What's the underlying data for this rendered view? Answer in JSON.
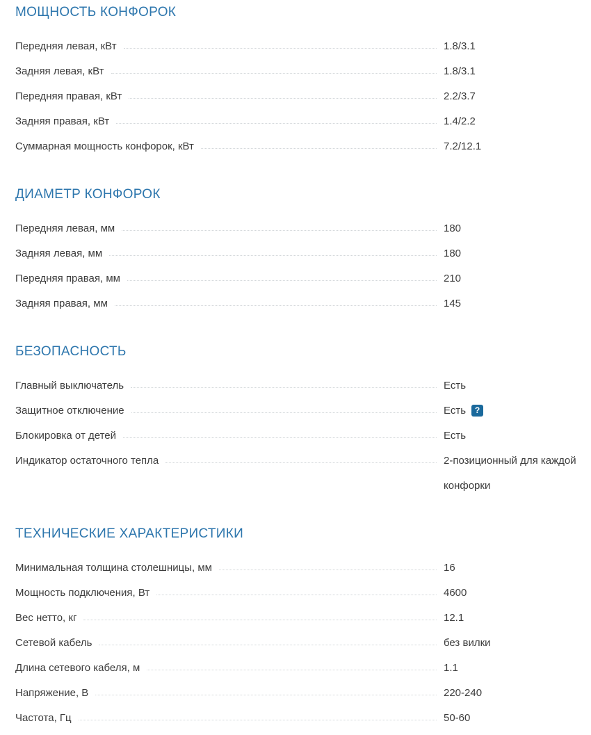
{
  "page": {
    "accent_color": "#2d76ad",
    "help_badge_color": "#1a699c",
    "help_badge_label": "?"
  },
  "sections": [
    {
      "title": "МОЩНОСТЬ КОНФОРОК",
      "rows": [
        {
          "label": "Передняя левая, кВт",
          "value": "1.8/3.1"
        },
        {
          "label": "Задняя левая, кВт",
          "value": "1.8/3.1"
        },
        {
          "label": "Передняя правая, кВт",
          "value": "2.2/3.7"
        },
        {
          "label": "Задняя правая, кВт",
          "value": "1.4/2.2"
        },
        {
          "label": "Суммарная мощность конфорок, кВт",
          "value": "7.2/12.1"
        }
      ]
    },
    {
      "title": "ДИАМЕТР КОНФОРОК",
      "rows": [
        {
          "label": "Передняя левая, мм",
          "value": "180"
        },
        {
          "label": "Задняя левая, мм",
          "value": "180"
        },
        {
          "label": "Передняя правая, мм",
          "value": "210"
        },
        {
          "label": "Задняя правая, мм",
          "value": "145"
        }
      ]
    },
    {
      "title": "БЕЗОПАСНОСТЬ",
      "rows": [
        {
          "label": "Главный выключатель",
          "value": "Есть"
        },
        {
          "label": "Защитное отключение",
          "value": "Есть",
          "help_icon": true
        },
        {
          "label": "Блокировка от детей",
          "value": "Есть"
        },
        {
          "label": "Индикатор остаточного тепла",
          "value": "2-позиционный для каждой конфорки"
        }
      ]
    },
    {
      "title": "ТЕХНИЧЕСКИЕ ХАРАКТЕРИСТИКИ",
      "rows": [
        {
          "label": "Минимальная толщина столешницы, мм",
          "value": "16"
        },
        {
          "label": "Мощность подключения, Вт",
          "value": "4600"
        },
        {
          "label": "Вес нетто, кг",
          "value": "12.1"
        },
        {
          "label": "Сетевой кабель",
          "value": "без вилки"
        },
        {
          "label": "Длина сетевого кабеля, м",
          "value": "1.1"
        },
        {
          "label": "Напряжение, В",
          "value": "220-240"
        },
        {
          "label": "Частота, Гц",
          "value": "50-60"
        }
      ]
    }
  ]
}
